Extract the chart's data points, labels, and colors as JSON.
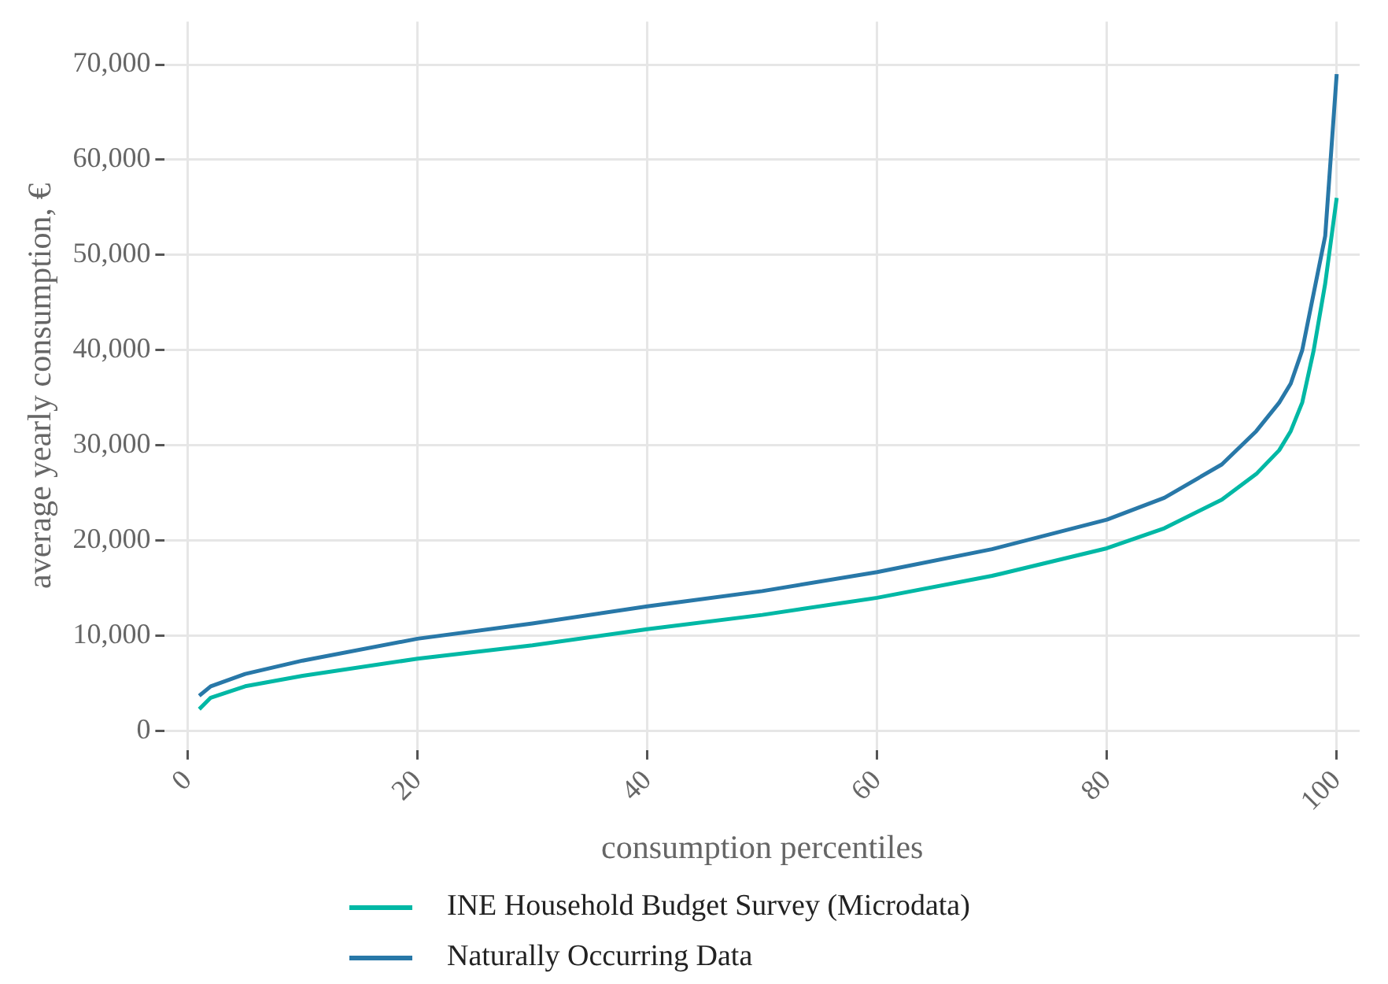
{
  "chart_data": {
    "type": "line",
    "xlabel": "consumption percentiles",
    "ylabel": "average yearly consumption, €",
    "x": [
      1,
      2,
      5,
      10,
      20,
      30,
      40,
      50,
      60,
      70,
      80,
      85,
      90,
      93,
      95,
      96,
      97,
      98,
      99,
      100
    ],
    "series": [
      {
        "name": "INE Household Budget Survey (Microdata)",
        "color": "#00b8a5",
        "values": [
          2300,
          3500,
          4700,
          5800,
          7600,
          9000,
          10700,
          12200,
          14000,
          16300,
          19200,
          21300,
          24300,
          27000,
          29500,
          31500,
          34500,
          40000,
          47000,
          56000
        ]
      },
      {
        "name": "Naturally Occurring Data",
        "color": "#2878a8",
        "values": [
          3700,
          4700,
          6000,
          7400,
          9700,
          11300,
          13100,
          14700,
          16700,
          19100,
          22200,
          24500,
          28000,
          31500,
          34500,
          36500,
          40000,
          46000,
          52000,
          69000
        ]
      }
    ],
    "xlim": [
      -2,
      102
    ],
    "xticks": [
      0,
      20,
      40,
      60,
      80,
      100
    ],
    "ylim": [
      -2000,
      74500
    ],
    "yticks": [
      {
        "value": 0,
        "label": "0"
      },
      {
        "value": 10000,
        "label": "10,000"
      },
      {
        "value": 20000,
        "label": "20,000"
      },
      {
        "value": 30000,
        "label": "30,000"
      },
      {
        "value": 40000,
        "label": "40,000"
      },
      {
        "value": 50000,
        "label": "50,000"
      },
      {
        "value": 60000,
        "label": "60,000"
      },
      {
        "value": 70000,
        "label": "70,000"
      }
    ],
    "grid": true,
    "legend": "bottom",
    "marker": "none",
    "line_style": "solid"
  }
}
